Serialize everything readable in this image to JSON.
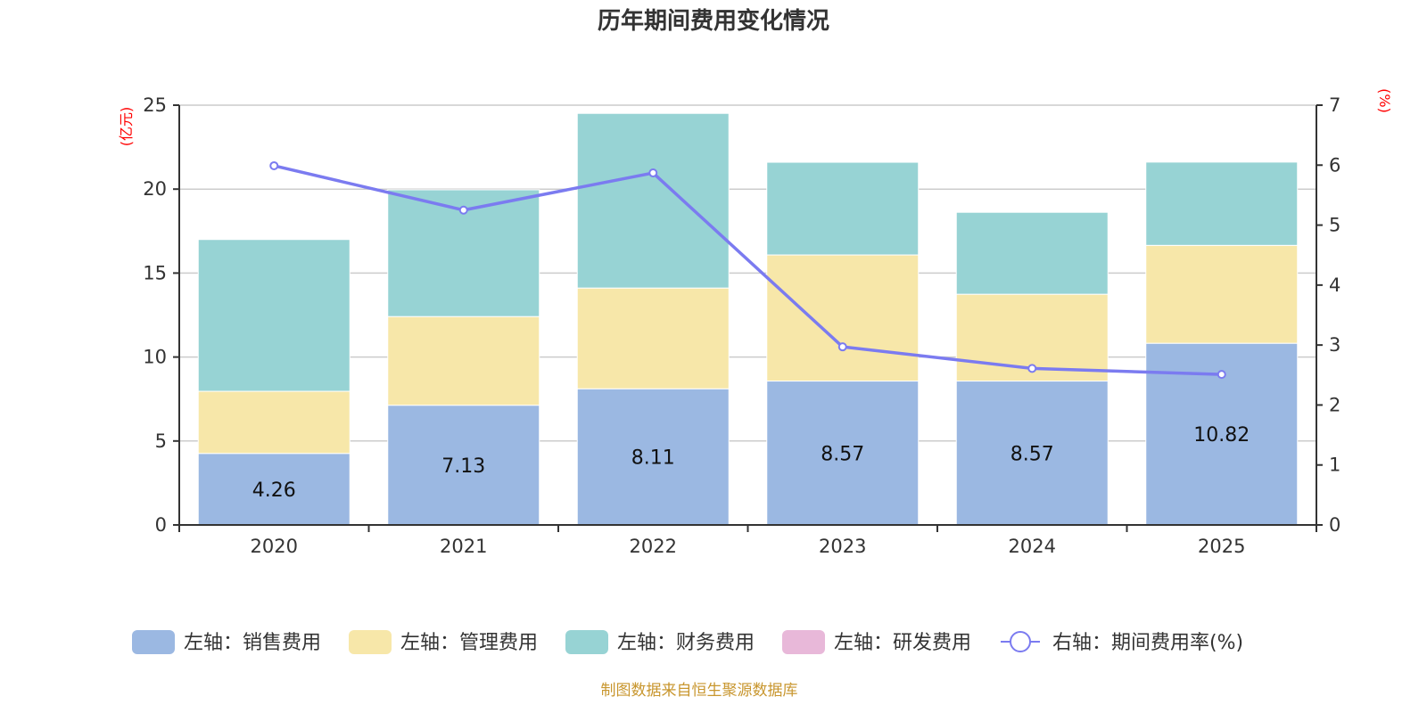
{
  "chart_data": {
    "type": "bar",
    "title": "历年期间费用变化情况",
    "categories": [
      "2020",
      "2021",
      "2022",
      "2023",
      "2024",
      "2025"
    ],
    "stacked": true,
    "series": [
      {
        "name": "左轴：销售费用",
        "axis": "left",
        "type": "bar",
        "color": "#9bb8e2",
        "values": [
          4.26,
          7.13,
          8.11,
          8.57,
          8.57,
          10.82
        ],
        "labels_shown": true
      },
      {
        "name": "左轴：管理费用",
        "axis": "left",
        "type": "bar",
        "color": "#f7e7a9",
        "values": [
          3.7,
          5.28,
          6.0,
          7.51,
          5.17,
          5.83
        ]
      },
      {
        "name": "左轴：财务费用",
        "axis": "left",
        "type": "bar",
        "color": "#97d3d4",
        "values": [
          9.04,
          7.55,
          10.4,
          5.52,
          4.88,
          4.96
        ]
      },
      {
        "name": "左轴：研发费用",
        "axis": "left",
        "type": "bar",
        "color": "#e8b8d9",
        "values": [
          0,
          0,
          0,
          0,
          0,
          0
        ]
      },
      {
        "name": "右轴：期间费用率(%)",
        "axis": "right",
        "type": "line",
        "color": "#7b7bf0",
        "values": [
          5.99,
          5.25,
          5.87,
          2.97,
          2.61,
          2.51
        ]
      }
    ],
    "left_axis": {
      "label": "(亿元)",
      "min": 0,
      "max": 25,
      "ticks": [
        0,
        5,
        10,
        15,
        20,
        25
      ]
    },
    "right_axis": {
      "label": "(%)",
      "min": 0,
      "max": 7,
      "ticks": [
        0,
        1,
        2,
        3,
        4,
        5,
        6,
        7
      ]
    },
    "grid": true,
    "legend_position": "bottom",
    "source_note": "制图数据来自恒生聚源数据库"
  }
}
